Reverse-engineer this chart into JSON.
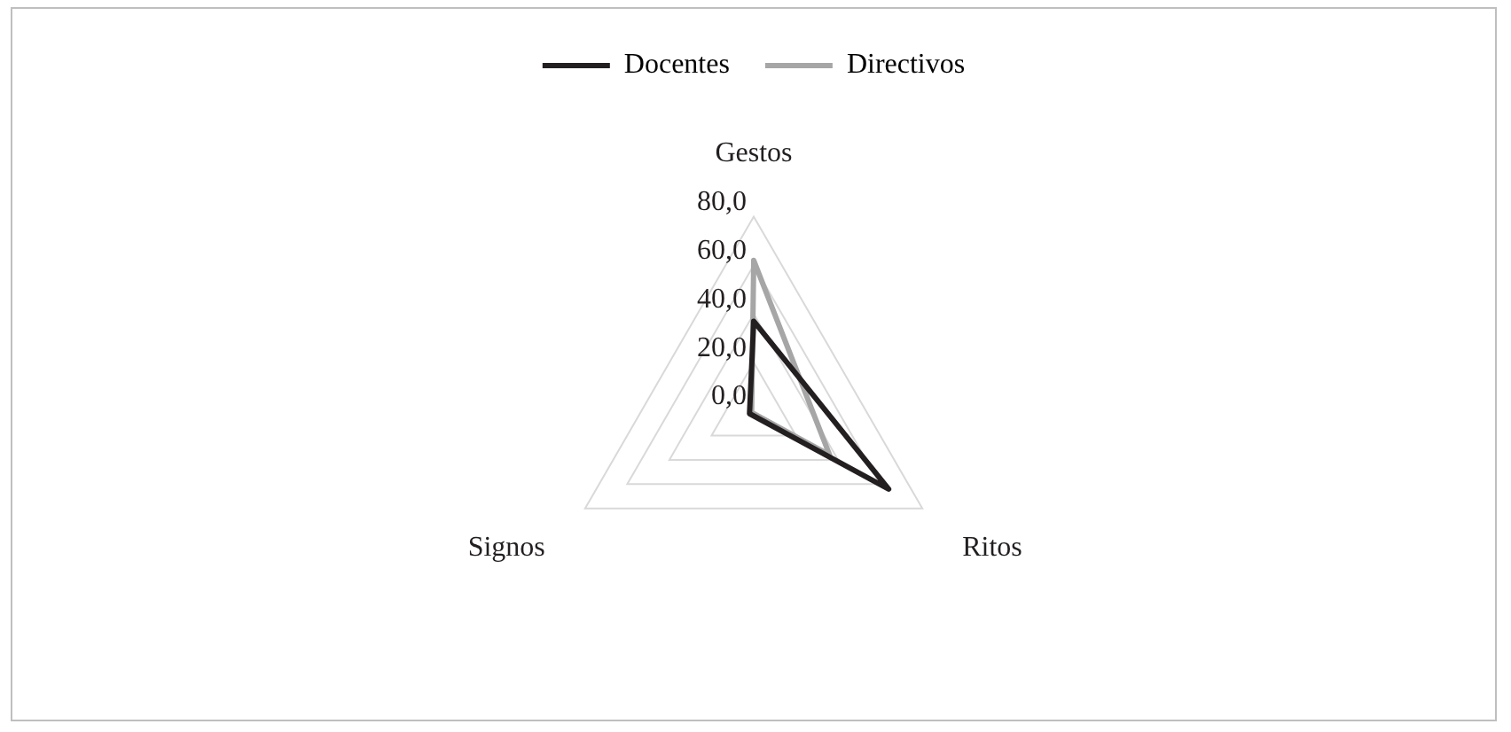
{
  "chart_data": {
    "type": "radar",
    "categories": [
      "Gestos",
      "Ritos",
      "Signos"
    ],
    "series": [
      {
        "name": "Docentes",
        "color": "#231f20",
        "values": [
          37,
          64,
          2
        ]
      },
      {
        "name": "Directivos",
        "color": "#a6a6a6",
        "values": [
          62,
          36,
          1
        ]
      }
    ],
    "ylim": [
      0,
      80
    ],
    "yticks": [
      {
        "value": 0,
        "label": "0,0"
      },
      {
        "value": 20,
        "label": "20,0"
      },
      {
        "value": 40,
        "label": "40,0"
      },
      {
        "value": 60,
        "label": "60,0"
      },
      {
        "value": 80,
        "label": "80,0"
      }
    ],
    "grid": true,
    "legend": "top",
    "marker": "none"
  }
}
